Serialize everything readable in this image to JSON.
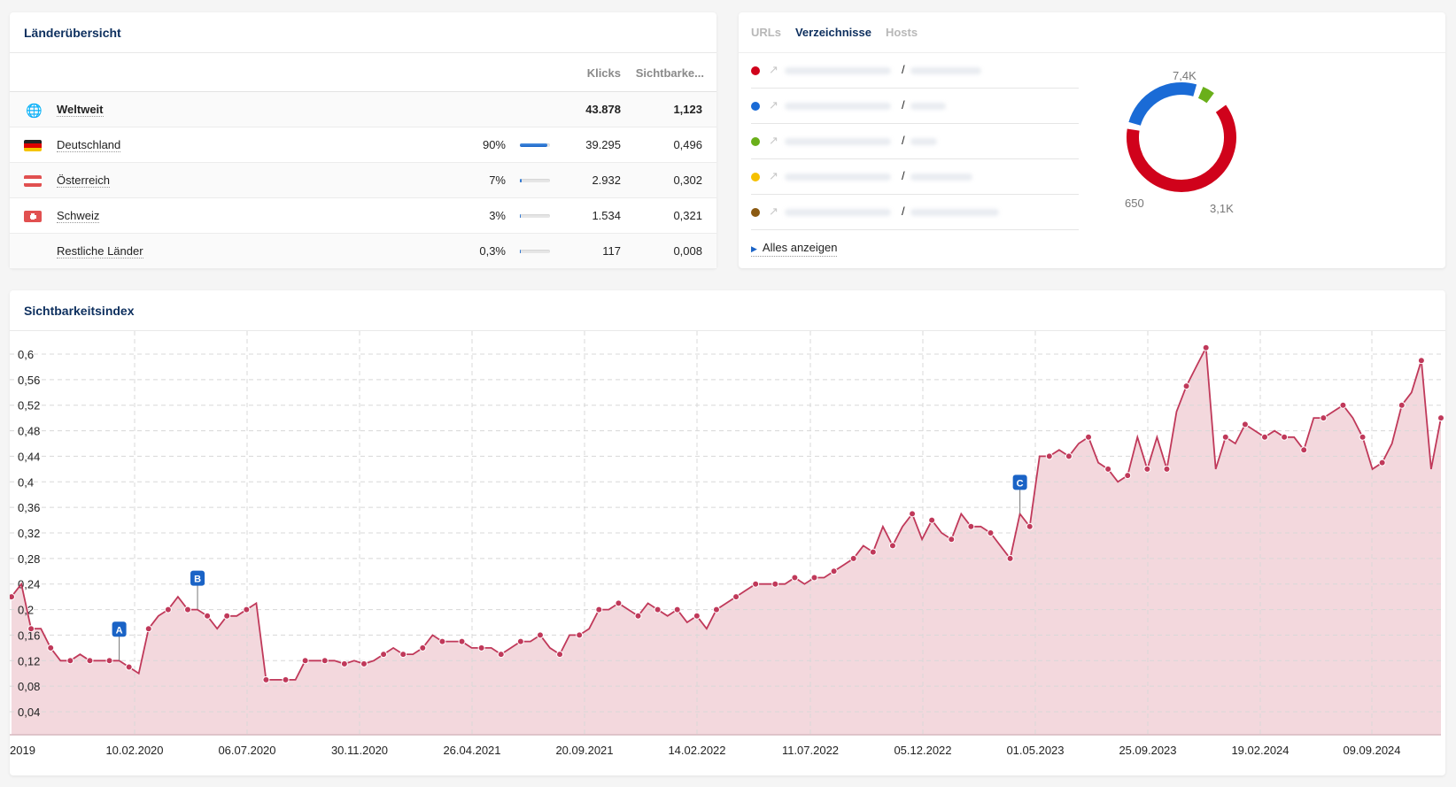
{
  "countries": {
    "title": "Länderübersicht",
    "headers": {
      "klicks": "Klicks",
      "sichtbarkeit": "Sichtbarke..."
    },
    "rows": [
      {
        "name": "Weltweit",
        "icon": "globe-icon",
        "pct": "",
        "bar": 0,
        "klicks": "43.878",
        "sicht": "1,123",
        "bold": true
      },
      {
        "name": "Deutschland",
        "icon": "flag-de-icon",
        "pct": "90%",
        "bar": 90,
        "klicks": "39.295",
        "sicht": "0,496"
      },
      {
        "name": "Österreich",
        "icon": "flag-at-icon",
        "pct": "7%",
        "bar": 7,
        "klicks": "2.932",
        "sicht": "0,302"
      },
      {
        "name": "Schweiz",
        "icon": "flag-ch-icon",
        "pct": "3%",
        "bar": 3,
        "klicks": "1.534",
        "sicht": "0,321"
      },
      {
        "name": "Restliche Länder",
        "icon": "",
        "pct": "0,3%",
        "bar": 0.3,
        "klicks": "117",
        "sicht": "0,008"
      }
    ]
  },
  "directories": {
    "tabs": [
      {
        "label": "URLs",
        "active": false
      },
      {
        "label": "Verzeichnisse",
        "active": true
      },
      {
        "label": "Hosts",
        "active": false
      }
    ],
    "items": [
      {
        "color": "#d0021b",
        "path": "/"
      },
      {
        "color": "#1a6bd6",
        "path": "/"
      },
      {
        "color": "#6aaf1a",
        "path": "/"
      },
      {
        "color": "#f5c000",
        "path": "/"
      },
      {
        "color": "#8b5a12",
        "path": "/"
      }
    ],
    "show_all": "Alles anzeigen",
    "donut": {
      "labels": [
        "7,4K",
        "3,1K",
        "650"
      ],
      "segments": [
        {
          "value": 7400,
          "color": "#d0021b"
        },
        {
          "value": 3100,
          "color": "#1a6bd6"
        },
        {
          "value": 650,
          "color": "#6aaf1a"
        },
        {
          "value": 120,
          "color": "#f5c000"
        },
        {
          "value": 110,
          "color": "#8b5a12"
        },
        {
          "value": 100,
          "color": "#f08a1a"
        }
      ]
    }
  },
  "visibility": {
    "title": "Sichtbarkeitsindex"
  },
  "chart_data": {
    "type": "area",
    "title": "Sichtbarkeitsindex",
    "xlabel": "",
    "ylabel": "",
    "ylim": [
      0,
      0.6
    ],
    "yticks": [
      "0,04",
      "0,08",
      "0,12",
      "0,16",
      "0,2",
      "0,24",
      "0,28",
      "0,32",
      "0,36",
      "0,4",
      "0,44",
      "0,48",
      "0,52",
      "0,56",
      "0,6"
    ],
    "xticks": [
      "2019",
      "10.02.2020",
      "06.07.2020",
      "30.11.2020",
      "26.04.2021",
      "20.09.2021",
      "14.02.2022",
      "11.07.2022",
      "05.12.2022",
      "01.05.2023",
      "25.09.2023",
      "19.02.2024",
      "09.09.2024"
    ],
    "color": "#c0395a",
    "fill": "#f3d8dd",
    "annotations": [
      {
        "label": "A",
        "x": 0.072
      },
      {
        "label": "B",
        "x": 0.133
      },
      {
        "label": "C",
        "x": 0.706
      }
    ],
    "values": [
      0.22,
      0.24,
      0.17,
      0.17,
      0.14,
      0.12,
      0.12,
      0.13,
      0.12,
      0.12,
      0.12,
      0.12,
      0.11,
      0.1,
      0.17,
      0.19,
      0.2,
      0.22,
      0.2,
      0.2,
      0.19,
      0.17,
      0.19,
      0.19,
      0.2,
      0.21,
      0.09,
      0.09,
      0.09,
      0.09,
      0.12,
      0.12,
      0.12,
      0.12,
      0.115,
      0.12,
      0.115,
      0.12,
      0.13,
      0.14,
      0.13,
      0.13,
      0.14,
      0.16,
      0.15,
      0.15,
      0.15,
      0.14,
      0.14,
      0.14,
      0.13,
      0.14,
      0.15,
      0.15,
      0.16,
      0.14,
      0.13,
      0.16,
      0.16,
      0.17,
      0.2,
      0.2,
      0.21,
      0.2,
      0.19,
      0.21,
      0.2,
      0.19,
      0.2,
      0.18,
      0.19,
      0.17,
      0.2,
      0.21,
      0.22,
      0.23,
      0.24,
      0.24,
      0.24,
      0.24,
      0.25,
      0.24,
      0.25,
      0.25,
      0.26,
      0.27,
      0.28,
      0.3,
      0.29,
      0.33,
      0.3,
      0.33,
      0.35,
      0.31,
      0.34,
      0.32,
      0.31,
      0.35,
      0.33,
      0.33,
      0.32,
      0.3,
      0.28,
      0.35,
      0.33,
      0.44,
      0.44,
      0.45,
      0.44,
      0.46,
      0.47,
      0.43,
      0.42,
      0.4,
      0.41,
      0.47,
      0.42,
      0.47,
      0.42,
      0.51,
      0.55,
      0.58,
      0.61,
      0.42,
      0.47,
      0.46,
      0.49,
      0.48,
      0.47,
      0.48,
      0.47,
      0.47,
      0.45,
      0.5,
      0.5,
      0.51,
      0.52,
      0.5,
      0.47,
      0.42,
      0.43,
      0.46,
      0.52,
      0.54,
      0.59,
      0.42,
      0.5
    ]
  }
}
